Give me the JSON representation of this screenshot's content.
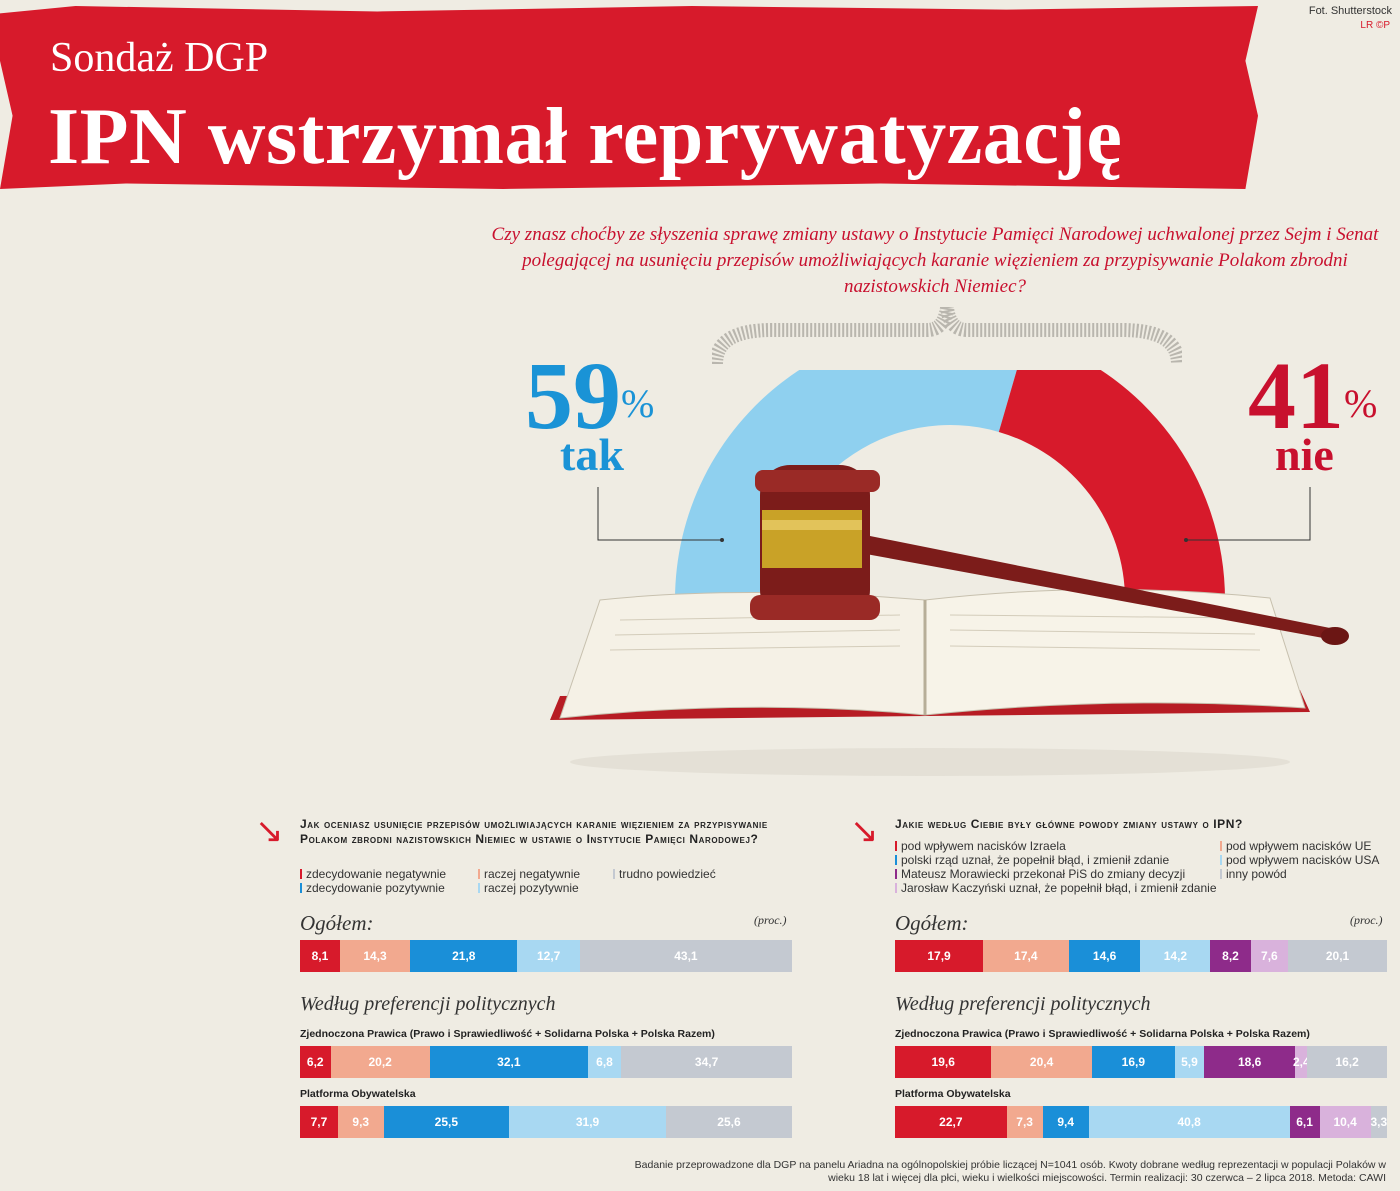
{
  "header": {
    "kicker": "Sondaż DGP",
    "title": "IPN wstrzymał reprywatyzację",
    "credit": "Fot. Shutterstock",
    "logo": "LR ©P"
  },
  "main_question": "Czy znasz choćby ze słyszenia sprawę zmiany ustawy o Instytucie Pamięci Narodowej uchwalonej przez Sejm i Senat polegającej na usunięciu przepisów umożliwiających karanie więzieniem za przypisywanie Polakom zbrodni nazistowskich Niemiec?",
  "main_result": {
    "yes_value": "59",
    "yes_label": "tak",
    "no_value": "41",
    "no_label": "nie",
    "pct_sign": "%"
  },
  "labels": {
    "ogolem": "Ogółem:",
    "proc": "(proc.)",
    "wedlug": "Według preferencji politycznych",
    "party_zp": "Zjednoczona Prawica (Prawo i Sprawiedliwość + Solidarna Polska + Polska Razem)",
    "party_po": "Platforma Obywatelska"
  },
  "left_section": {
    "question": "Jak oceniasz usunięcie przepisów umożliwiających karanie więzieniem za przypisywanie Polakom zbrodni nazistowskich Niemiec w ustawie o Instytucie Pamięci Narodowej?",
    "legend": [
      "zdecydowanie negatywnie",
      "raczej negatywnie",
      "trudno powiedzieć",
      "zdecydowanie pozytywnie",
      "raczej pozytywnie"
    ]
  },
  "right_section": {
    "question": "Jakie według Ciebie były główne powody zmiany ustawy o IPN?",
    "legend": [
      "pod wpływem nacisków Izraela",
      "polski rząd uznał, że popełnił błąd, i zmienił zdanie",
      "Mateusz Morawiecki przekonał PiS do zmiany decyzji",
      "Jarosław Kaczyński uznał, że popełnił błąd, i zmienił zdanie",
      "pod wpływem nacisków UE",
      "pod wpływem nacisków USA",
      "inny powód"
    ]
  },
  "footnote": "Badanie przeprowadzone dla DGP na panelu Ariadna na ogólnopolskiej próbie liczącej N=1041 osób. Kwoty dobrane według reprezentacji w populacji Polaków w wieku 18 lat i więcej dla płci, wieku i wielkości miejscowości. Termin realizacji: 30 czerwca – 2 lipca 2018. Metoda: CAWI",
  "chart_data": [
    {
      "type": "pie",
      "title": "Czy znasz choćby ze słyszenia sprawę zmiany ustawy o IPN?",
      "categories": [
        "tak",
        "nie"
      ],
      "values": [
        59,
        41
      ],
      "colors": [
        "#8fd0ef",
        "#d71a2b"
      ]
    },
    {
      "type": "bar",
      "orientation": "horizontal-stacked",
      "title": "Jak oceniasz usunięcie przepisów?",
      "unit": "proc.",
      "categories": [
        "Ogółem",
        "Zjednoczona Prawica",
        "Platforma Obywatelska"
      ],
      "series": [
        {
          "name": "zdecydowanie negatywnie",
          "color": "#d71a2b",
          "values": [
            8.1,
            6.2,
            7.7
          ]
        },
        {
          "name": "raczej negatywnie",
          "color": "#f2a98f",
          "values": [
            14.3,
            20.2,
            9.3
          ]
        },
        {
          "name": "zdecydowanie pozytywnie",
          "color": "#1a8fd8",
          "values": [
            21.8,
            32.1,
            25.5
          ]
        },
        {
          "name": "raczej pozytywnie",
          "color": "#a8d8f2",
          "values": [
            12.7,
            6.8,
            31.9
          ]
        },
        {
          "name": "trudno powiedzieć",
          "color": "#c4c9d1",
          "values": [
            43.1,
            34.7,
            25.6
          ]
        }
      ]
    },
    {
      "type": "bar",
      "orientation": "horizontal-stacked",
      "title": "Jakie według Ciebie były główne powody zmiany ustawy o IPN?",
      "unit": "proc.",
      "categories": [
        "Ogółem",
        "Zjednoczona Prawica",
        "Platforma Obywatelska"
      ],
      "series": [
        {
          "name": "pod wpływem nacisków Izraela",
          "color": "#d71a2b",
          "values": [
            17.9,
            19.6,
            22.7
          ]
        },
        {
          "name": "pod wpływem nacisków UE",
          "color": "#f2a98f",
          "values": [
            17.4,
            20.4,
            7.3
          ]
        },
        {
          "name": "polski rząd uznał, że popełnił błąd, i zmienił zdanie",
          "color": "#1a8fd8",
          "values": [
            14.6,
            16.9,
            9.4
          ]
        },
        {
          "name": "pod wpływem nacisków USA",
          "color": "#a8d8f2",
          "values": [
            14.2,
            5.9,
            40.8
          ]
        },
        {
          "name": "Mateusz Morawiecki przekonał PiS do zmiany decyzji",
          "color": "#8e2b8a",
          "values": [
            8.2,
            18.6,
            6.1
          ]
        },
        {
          "name": "Jarosław Kaczyński uznał, że popełnił błąd, i zmienił zdanie",
          "color": "#d9b2dc",
          "values": [
            7.6,
            2.4,
            10.4
          ]
        },
        {
          "name": "inny powód",
          "color": "#c4c9d1",
          "values": [
            20.1,
            16.2,
            3.3
          ]
        }
      ]
    }
  ]
}
